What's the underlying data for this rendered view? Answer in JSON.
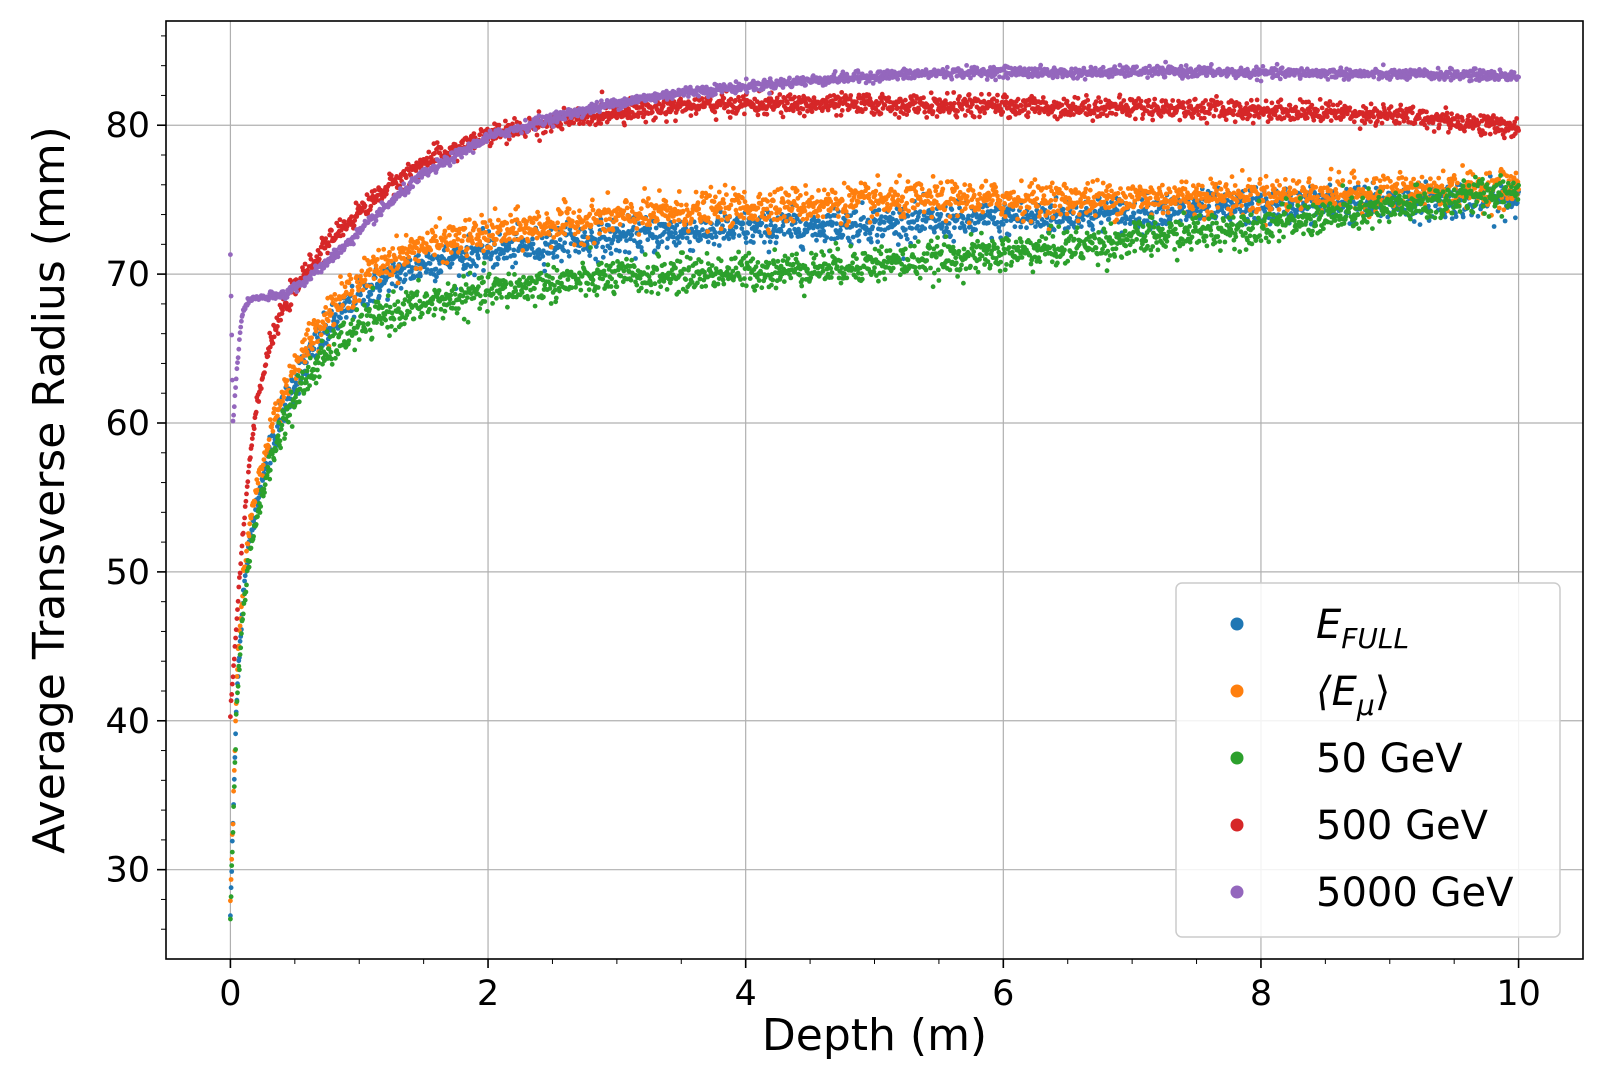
{
  "chart_data": {
    "type": "scatter",
    "xlabel": "Depth (m)",
    "ylabel": "Average Transverse Radius (mm)",
    "xlim": [
      -0.5,
      10.5
    ],
    "ylim": [
      24,
      87
    ],
    "xticks": [
      0,
      2,
      4,
      6,
      8,
      10
    ],
    "yticks": [
      30,
      40,
      50,
      60,
      70,
      80
    ],
    "grid": true,
    "legend_position": "lower-right",
    "series": [
      {
        "name": "E_FULL",
        "legend": {
          "main": "E",
          "sub": "FULL"
        },
        "color": "#1f77b4",
        "x": [
          0,
          0.05,
          0.1,
          0.15,
          0.2,
          0.3,
          0.4,
          0.5,
          0.6,
          0.7,
          0.8,
          1.0,
          1.2,
          1.5,
          2.0,
          2.5,
          3.0,
          3.5,
          4.0,
          4.5,
          5.0,
          5.5,
          6.0,
          6.5,
          7.0,
          7.5,
          8.0,
          8.5,
          9.0,
          9.5,
          10.0
        ],
        "y": [
          27,
          42,
          48.5,
          52,
          54.5,
          58,
          60.8,
          62.8,
          64.2,
          65.6,
          66.8,
          68.5,
          69.6,
          70.7,
          71.5,
          72.0,
          72.5,
          72.8,
          73.0,
          73.2,
          73.4,
          73.5,
          73.7,
          73.9,
          74.1,
          74.3,
          74.5,
          74.7,
          74.8,
          75.0,
          75.0
        ],
        "noise": 0.6
      },
      {
        "name": "<E_mu>",
        "legend": {
          "main": "⟨E",
          "sub": "μ",
          "tail": "⟩"
        },
        "color": "#ff7f0e",
        "x": [
          0,
          0.05,
          0.1,
          0.15,
          0.2,
          0.3,
          0.4,
          0.5,
          0.6,
          0.7,
          0.8,
          1.0,
          1.2,
          1.5,
          2.0,
          2.5,
          3.0,
          3.5,
          4.0,
          4.5,
          5.0,
          5.5,
          6.0,
          6.5,
          7.0,
          7.5,
          8.0,
          8.5,
          9.0,
          9.5,
          10.0
        ],
        "y": [
          28,
          43,
          49.5,
          53,
          55.5,
          59,
          61.8,
          63.8,
          65.3,
          66.7,
          67.8,
          69.5,
          70.8,
          71.9,
          72.7,
          73.3,
          73.8,
          74.2,
          74.5,
          74.7,
          74.9,
          75.0,
          75.0,
          75.0,
          75.1,
          75.2,
          75.3,
          75.4,
          75.5,
          75.7,
          75.8
        ],
        "noise": 0.6
      },
      {
        "name": "50 GeV",
        "legend": {
          "main": "50 GeV"
        },
        "color": "#2ca02c",
        "x": [
          0,
          0.05,
          0.1,
          0.15,
          0.2,
          0.3,
          0.4,
          0.5,
          0.6,
          0.7,
          0.8,
          1.0,
          1.2,
          1.5,
          2.0,
          2.5,
          3.0,
          3.5,
          4.0,
          4.5,
          5.0,
          5.5,
          6.0,
          6.5,
          7.0,
          7.5,
          8.0,
          8.5,
          9.0,
          9.5,
          10.0
        ],
        "y": [
          27,
          41.5,
          47.5,
          51,
          53.5,
          57,
          59.8,
          61.6,
          63.0,
          64.2,
          65.1,
          66.5,
          67.3,
          68.0,
          68.8,
          69.4,
          69.8,
          70.0,
          70.2,
          70.4,
          70.7,
          71.0,
          71.4,
          71.8,
          72.3,
          72.8,
          73.3,
          73.8,
          74.4,
          75.0,
          75.7
        ],
        "noise": 0.6
      },
      {
        "name": "500 GeV",
        "legend": {
          "main": "500 GeV"
        },
        "color": "#d62728",
        "x": [
          0,
          0.05,
          0.1,
          0.15,
          0.2,
          0.3,
          0.4,
          0.5,
          0.6,
          0.7,
          0.8,
          1.0,
          1.2,
          1.5,
          2.0,
          2.5,
          3.0,
          3.5,
          4.0,
          4.5,
          5.0,
          5.5,
          6.0,
          6.5,
          7.0,
          7.5,
          8.0,
          8.5,
          9.0,
          9.5,
          10.0
        ],
        "y": [
          40.5,
          47,
          53,
          57.5,
          61,
          65,
          67.5,
          69,
          70.3,
          71.5,
          72.5,
          74.2,
          75.7,
          77.5,
          79.3,
          80.2,
          80.9,
          81.3,
          81.4,
          81.4,
          81.4,
          81.3,
          81.3,
          81.2,
          81.2,
          81.1,
          81.0,
          80.9,
          80.7,
          80.3,
          79.8
        ],
        "noise": 0.35
      },
      {
        "name": "5000 GeV",
        "legend": {
          "main": "5000 GeV"
        },
        "color": "#9467bd",
        "x": [
          0,
          0.02,
          0.05,
          0.08,
          0.1,
          0.15,
          0.2,
          0.3,
          0.4,
          0.5,
          0.6,
          0.7,
          0.8,
          1.0,
          1.2,
          1.5,
          2.0,
          2.5,
          3.0,
          3.5,
          4.0,
          4.5,
          5.0,
          5.5,
          6.0,
          6.5,
          7.0,
          7.5,
          8.0,
          8.5,
          9.0,
          9.5,
          10.0
        ],
        "y": [
          71.5,
          60,
          63.5,
          66.5,
          67.6,
          68.3,
          68.4,
          68.4,
          68.6,
          69.1,
          69.7,
          70.4,
          71.2,
          72.8,
          74.5,
          76.7,
          79.2,
          80.5,
          81.5,
          82.2,
          82.6,
          83.0,
          83.3,
          83.5,
          83.6,
          83.5,
          83.6,
          83.6,
          83.5,
          83.5,
          83.4,
          83.4,
          83.3
        ],
        "noise": 0.18
      }
    ]
  }
}
